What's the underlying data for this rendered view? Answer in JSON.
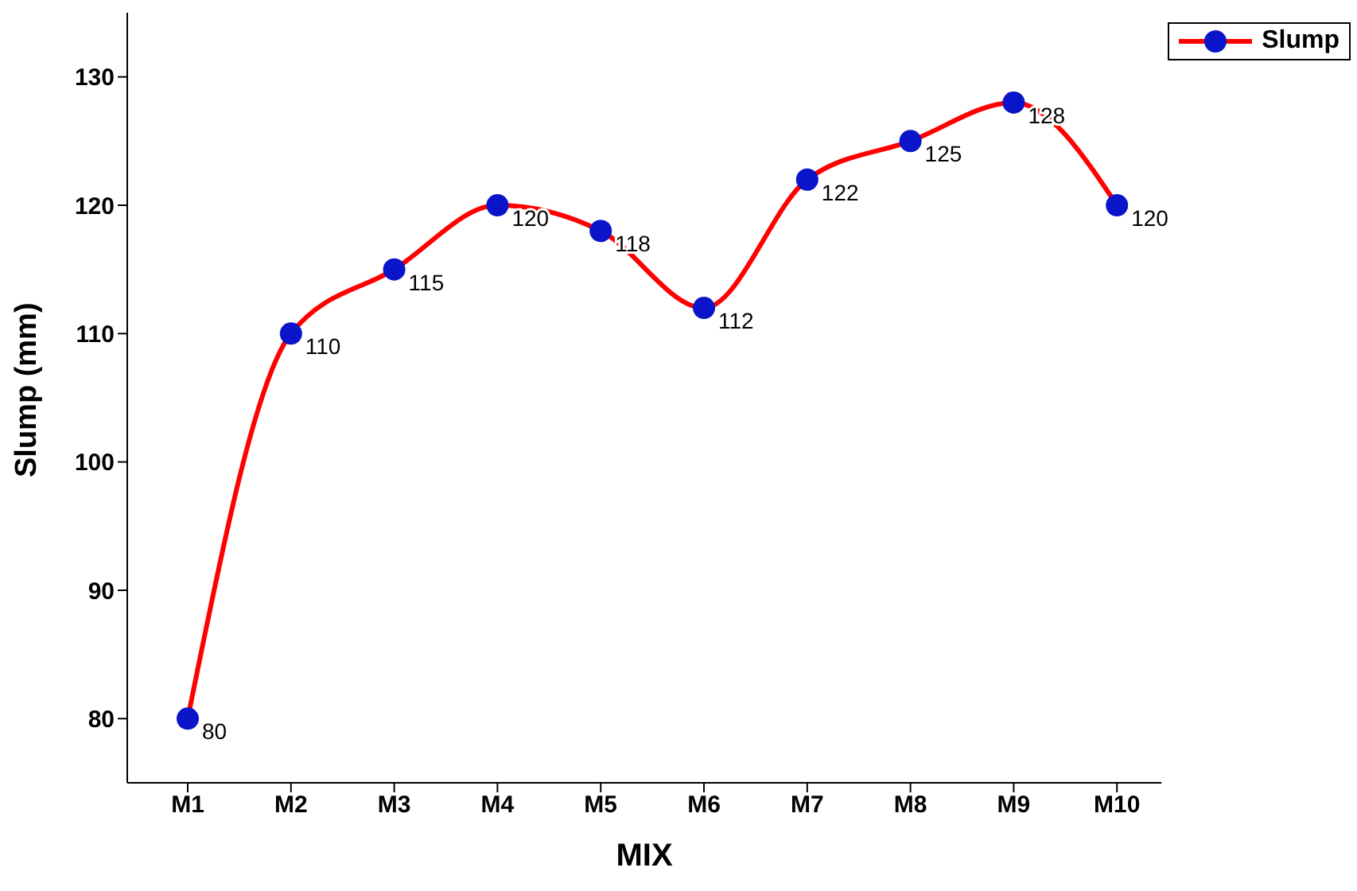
{
  "chart_data": {
    "type": "line",
    "xlabel": "MIX",
    "ylabel": "Slump (mm)",
    "categories": [
      "M1",
      "M2",
      "M3",
      "M4",
      "M5",
      "M6",
      "M7",
      "M8",
      "M9",
      "M10"
    ],
    "series": [
      {
        "name": "Slump",
        "color": "#ff0000",
        "colors": [
          "#0a14c8",
          "#0a14c8",
          "#0a14c8",
          "#0a14c8",
          "#0a14c8",
          "#0a14c8",
          "#0a14c8",
          "#0a14c8",
          "#0a14c8",
          "#0a14c8"
        ],
        "values": [
          80,
          110,
          115,
          120,
          118,
          112,
          122,
          125,
          128,
          120
        ]
      }
    ],
    "ylim": [
      75,
      135
    ],
    "yticks": [
      80,
      90,
      100,
      110,
      120,
      130
    ],
    "grid": false,
    "legend": "top right",
    "marker": "circle",
    "line_style": "solid",
    "data_labels": true
  }
}
